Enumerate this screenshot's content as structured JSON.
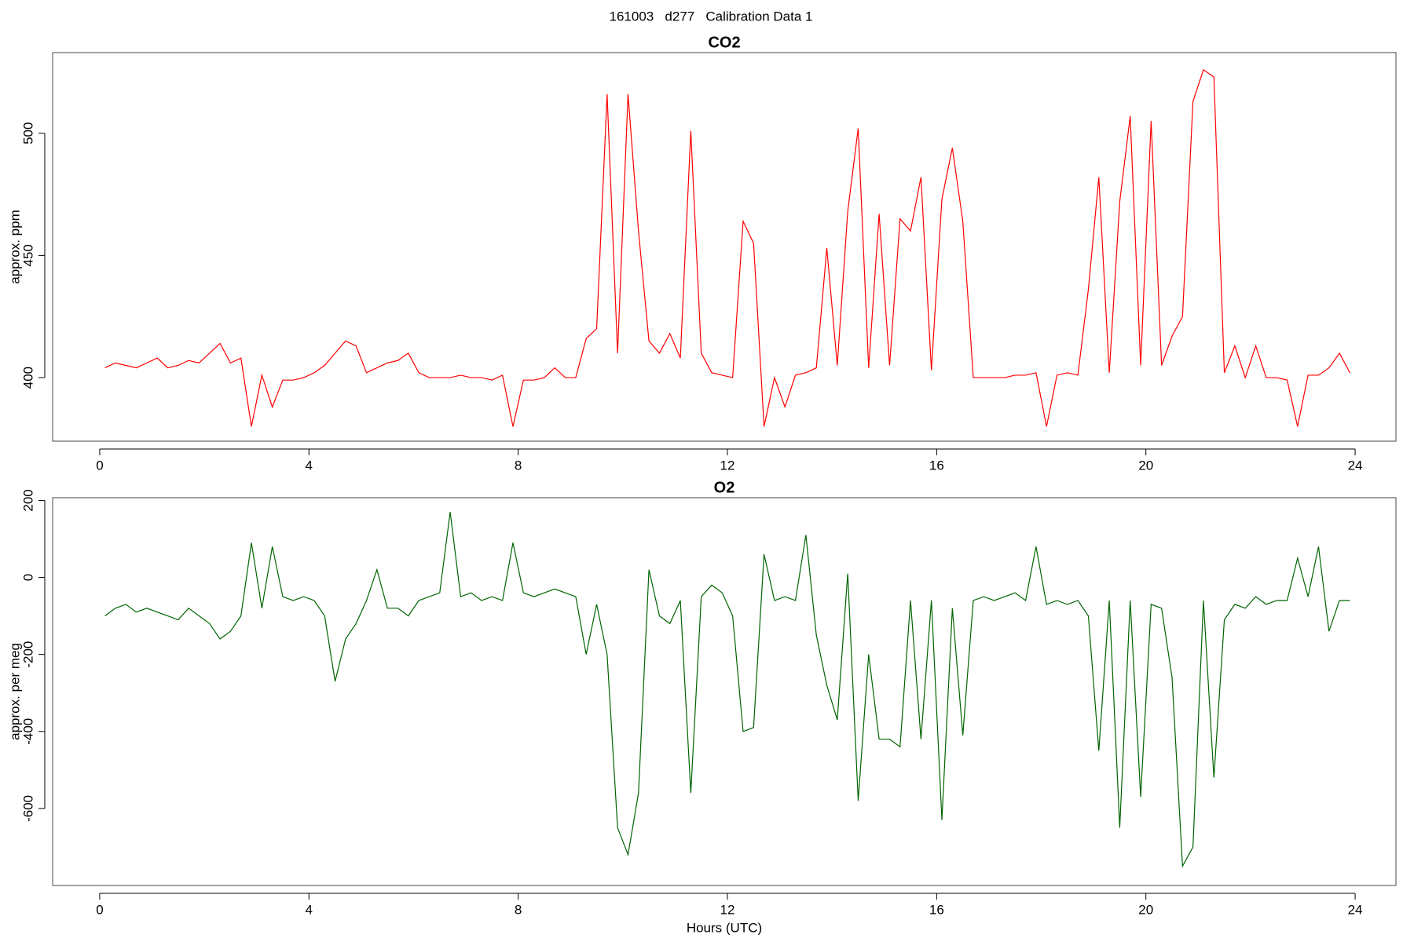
{
  "title": "161003   d277   Calibration Data 1",
  "chart_data": [
    {
      "type": "line",
      "title": "CO2",
      "y_label": "approx. ppm",
      "x": [
        0.1,
        0.3,
        0.5,
        0.7,
        0.9,
        1.1,
        1.3,
        1.5,
        1.7,
        1.9,
        2.1,
        2.3,
        2.5,
        2.7,
        2.9,
        3.1,
        3.3,
        3.5,
        3.7,
        3.9,
        4.1,
        4.3,
        4.5,
        4.7,
        4.9,
        5.1,
        5.3,
        5.5,
        5.7,
        5.9,
        6.1,
        6.3,
        6.5,
        6.7,
        6.9,
        7.1,
        7.3,
        7.5,
        7.7,
        7.9,
        8.1,
        8.3,
        8.5,
        8.7,
        8.9,
        9.1,
        9.3,
        9.5,
        9.7,
        9.9,
        10.1,
        10.3,
        10.5,
        10.7,
        10.9,
        11.1,
        11.3,
        11.5,
        11.7,
        11.9,
        12.1,
        12.3,
        12.5,
        12.7,
        12.9,
        13.1,
        13.3,
        13.5,
        13.7,
        13.9,
        14.1,
        14.3,
        14.5,
        14.7,
        14.9,
        15.1,
        15.3,
        15.5,
        15.7,
        15.9,
        16.1,
        16.3,
        16.5,
        16.7,
        16.9,
        17.1,
        17.3,
        17.5,
        17.7,
        17.9,
        18.1,
        18.3,
        18.5,
        18.7,
        18.9,
        19.1,
        19.3,
        19.5,
        19.7,
        19.9,
        20.1,
        20.3,
        20.5,
        20.7,
        20.9,
        21.1,
        21.3,
        21.5,
        21.7,
        21.9,
        22.1,
        22.3,
        22.5,
        22.7,
        22.9,
        23.1,
        23.3,
        23.5,
        23.7,
        23.9
      ],
      "series": [
        {
          "color": "#ff0000",
          "values": [
            404,
            406,
            405,
            404,
            406,
            408,
            404,
            405,
            407,
            406,
            410,
            414,
            406,
            408,
            380,
            401,
            388,
            399,
            399,
            400,
            402,
            405,
            410,
            415,
            413,
            402,
            404,
            406,
            407,
            410,
            402,
            400,
            400,
            400,
            401,
            400,
            400,
            399,
            401,
            380,
            399,
            399,
            400,
            404,
            400,
            400,
            416,
            420,
            516,
            410,
            516,
            460,
            415,
            410,
            418,
            408,
            501,
            410,
            402,
            401,
            400,
            464,
            455,
            380,
            400,
            388,
            401,
            402,
            404,
            453,
            405,
            468,
            502,
            404,
            467,
            405,
            465,
            460,
            482,
            403,
            473,
            494,
            464,
            400,
            400,
            400,
            400,
            401,
            401,
            402,
            380,
            401,
            402,
            401,
            436,
            482,
            402,
            472,
            507,
            405,
            505,
            405,
            417,
            425,
            513,
            526,
            523,
            402,
            413,
            400,
            413,
            400,
            400,
            399,
            380,
            401,
            401,
            404,
            410,
            402
          ]
        }
      ],
      "xlim": [
        -0.9,
        24.78
      ],
      "xticks": [
        0,
        4,
        8,
        12,
        16,
        20,
        24
      ],
      "ylim": [
        374,
        533
      ],
      "yticks": [
        400,
        450,
        500
      ]
    },
    {
      "type": "line",
      "title": "O2",
      "y_label": "approx. per meg",
      "x_label": "Hours (UTC)",
      "x": [
        0.1,
        0.3,
        0.5,
        0.7,
        0.9,
        1.1,
        1.3,
        1.5,
        1.7,
        1.9,
        2.1,
        2.3,
        2.5,
        2.7,
        2.9,
        3.1,
        3.3,
        3.5,
        3.7,
        3.9,
        4.1,
        4.3,
        4.5,
        4.7,
        4.9,
        5.1,
        5.3,
        5.5,
        5.7,
        5.9,
        6.1,
        6.3,
        6.5,
        6.7,
        6.9,
        7.1,
        7.3,
        7.5,
        7.7,
        7.9,
        8.1,
        8.3,
        8.5,
        8.7,
        8.9,
        9.1,
        9.3,
        9.5,
        9.7,
        9.9,
        10.1,
        10.3,
        10.5,
        10.7,
        10.9,
        11.1,
        11.3,
        11.5,
        11.7,
        11.9,
        12.1,
        12.3,
        12.5,
        12.7,
        12.9,
        13.1,
        13.3,
        13.5,
        13.7,
        13.9,
        14.1,
        14.3,
        14.5,
        14.7,
        14.9,
        15.1,
        15.3,
        15.5,
        15.7,
        15.9,
        16.1,
        16.3,
        16.5,
        16.7,
        16.9,
        17.1,
        17.3,
        17.5,
        17.7,
        17.9,
        18.1,
        18.3,
        18.5,
        18.7,
        18.9,
        19.1,
        19.3,
        19.5,
        19.7,
        19.9,
        20.1,
        20.3,
        20.5,
        20.7,
        20.9,
        21.1,
        21.3,
        21.5,
        21.7,
        21.9,
        22.1,
        22.3,
        22.5,
        22.7,
        22.9,
        23.1,
        23.3,
        23.5,
        23.7,
        23.9
      ],
      "series": [
        {
          "color": "#006400",
          "values": [
            -100,
            -80,
            -70,
            -90,
            -80,
            -90,
            -100,
            -110,
            -80,
            -100,
            -120,
            -160,
            -140,
            -100,
            90,
            -80,
            80,
            -50,
            -60,
            -50,
            -60,
            -100,
            -270,
            -160,
            -120,
            -60,
            20,
            -80,
            -80,
            -100,
            -60,
            -50,
            -40,
            170,
            -50,
            -40,
            -60,
            -50,
            -60,
            90,
            -40,
            -50,
            -40,
            -30,
            -40,
            -50,
            -200,
            -70,
            -200,
            -650,
            -720,
            -560,
            20,
            -100,
            -120,
            -60,
            -560,
            -50,
            -20,
            -40,
            -100,
            -400,
            -390,
            60,
            -60,
            -50,
            -60,
            110,
            -150,
            -280,
            -370,
            10,
            -580,
            -200,
            -420,
            -420,
            -440,
            -60,
            -420,
            -60,
            -630,
            -80,
            -410,
            -60,
            -50,
            -60,
            -50,
            -40,
            -60,
            80,
            -70,
            -60,
            -70,
            -60,
            -100,
            -450,
            -60,
            -650,
            -60,
            -570,
            -70,
            -80,
            -260,
            -750,
            -700,
            -60,
            -520,
            -110,
            -70,
            -80,
            -50,
            -70,
            -60,
            -60,
            50,
            -50,
            80,
            -140,
            -60,
            -60
          ]
        }
      ],
      "xlim": [
        -0.9,
        24.78
      ],
      "xticks": [
        0,
        4,
        8,
        12,
        16,
        20,
        24
      ],
      "ylim": [
        -800,
        207
      ],
      "yticks": [
        -600,
        -400,
        -200,
        0,
        200
      ]
    }
  ]
}
